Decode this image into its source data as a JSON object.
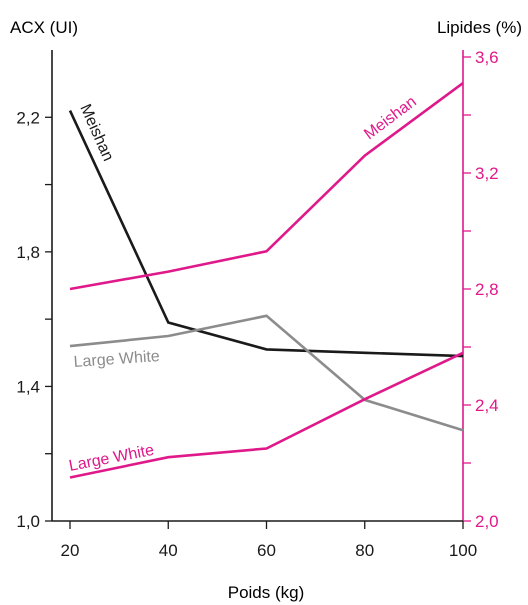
{
  "chart_data": {
    "type": "line",
    "xlabel": "Poids (kg)",
    "ylabel_left": "ACX (UI)",
    "ylabel_right": "Lipides (%)",
    "x": [
      20,
      40,
      60,
      80,
      100
    ],
    "x_ticks": [
      "20",
      "40",
      "60",
      "80",
      "100"
    ],
    "ylim_left": [
      1.0,
      2.4
    ],
    "ylim_right": [
      2.0,
      3.6
    ],
    "y_left_ticks": [
      "1,0",
      "1,4",
      "1,8",
      "2,2"
    ],
    "y_right_ticks": [
      "2,0",
      "2,4",
      "2,8",
      "3,2",
      "3,6"
    ],
    "grid": false,
    "series": [
      {
        "name": "Meishan",
        "axis": "left",
        "values": [
          2.22,
          1.59,
          1.51,
          1.5,
          1.49
        ]
      },
      {
        "name": "Large White",
        "axis": "left",
        "values": [
          1.52,
          1.55,
          1.61,
          1.36,
          1.27
        ]
      },
      {
        "name": "Meishan",
        "axis": "right",
        "values": [
          2.8,
          2.86,
          2.93,
          3.26,
          3.51
        ]
      },
      {
        "name": "Large White",
        "axis": "right",
        "values": [
          2.15,
          2.22,
          2.25,
          2.42,
          2.58
        ]
      }
    ]
  },
  "colors": {
    "left_axis": "#1a1a1a",
    "right_axis": "#e0198a",
    "meishan_acx": "#1a1a1a",
    "large_white_acx": "#8c8c8c",
    "lipides": "#e0198a"
  }
}
